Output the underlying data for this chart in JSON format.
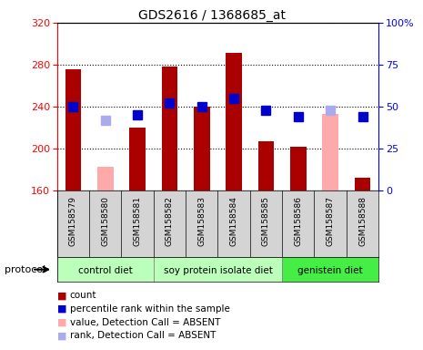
{
  "title": "GDS2616 / 1368685_at",
  "samples": [
    "GSM158579",
    "GSM158580",
    "GSM158581",
    "GSM158582",
    "GSM158583",
    "GSM158584",
    "GSM158585",
    "GSM158586",
    "GSM158587",
    "GSM158588"
  ],
  "count_values": [
    276,
    null,
    220,
    278,
    240,
    291,
    207,
    202,
    null,
    172
  ],
  "count_absent_values": [
    null,
    183,
    null,
    null,
    null,
    null,
    null,
    null,
    233,
    null
  ],
  "percentile_values": [
    50,
    null,
    45,
    52,
    50,
    55,
    48,
    44,
    null,
    44
  ],
  "percentile_absent_values": [
    null,
    42,
    null,
    null,
    null,
    null,
    null,
    null,
    48,
    null
  ],
  "ylim_left": [
    160,
    320
  ],
  "ylim_right": [
    0,
    100
  ],
  "yticks_left": [
    160,
    200,
    240,
    280,
    320
  ],
  "yticks_right": [
    0,
    25,
    50,
    75,
    100
  ],
  "group_defs": [
    {
      "start": 0,
      "end": 3,
      "color": "#bbffbb",
      "label": "control diet"
    },
    {
      "start": 3,
      "end": 7,
      "color": "#bbffbb",
      "label": "soy protein isolate diet"
    },
    {
      "start": 7,
      "end": 10,
      "color": "#44ee44",
      "label": "genistein diet"
    }
  ],
  "count_color": "#aa0000",
  "count_absent_color": "#ffaaaa",
  "percentile_marker_color": "#0000cc",
  "percentile_absent_marker_color": "#aaaaee",
  "marker_size": 7,
  "bar_width": 0.5,
  "plot_bg_color": "#ffffff",
  "sample_bg_color": "#d4d4d4",
  "grid_color": "#000000",
  "protocol_label": "protocol",
  "legend_items": [
    {
      "color": "#aa0000",
      "label": "count"
    },
    {
      "color": "#0000cc",
      "label": "percentile rank within the sample"
    },
    {
      "color": "#ffaaaa",
      "label": "value, Detection Call = ABSENT"
    },
    {
      "color": "#aaaaee",
      "label": "rank, Detection Call = ABSENT"
    }
  ]
}
